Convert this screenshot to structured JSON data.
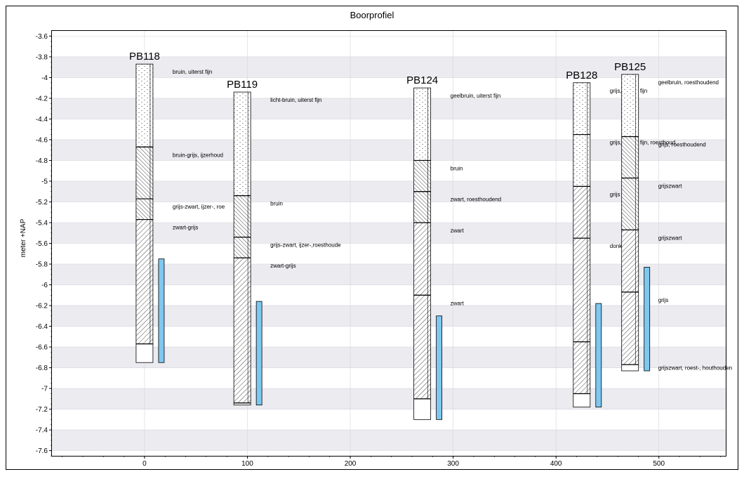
{
  "chart_data": {
    "type": "borehole-profile",
    "title": "Boorprofiel",
    "ylabel": "meter +NAP",
    "xlabel": "",
    "xlim": [
      -90,
      565
    ],
    "ylim": [
      -7.65,
      -3.55
    ],
    "xticks": [
      0,
      100,
      200,
      300,
      400,
      500
    ],
    "yticks": [
      -3.6,
      -3.8,
      -4,
      -4.2,
      -4.4,
      -4.6,
      -4.8,
      -5,
      -5.2,
      -5.4,
      -5.6,
      -5.8,
      -6,
      -6.2,
      -6.4,
      -6.6,
      -6.8,
      -7,
      -7.2,
      -7.4,
      -7.6
    ],
    "grid": "alternating horizontal bands",
    "colors": {
      "band": "#ebebf0",
      "filter": "#7ec8f0",
      "axis": "#000000"
    },
    "boreholes": [
      {
        "name": "PB118",
        "x": 0,
        "top": -3.87,
        "bottom": -6.75,
        "filter": {
          "top": -5.75,
          "bottom": -6.75
        },
        "layers": [
          {
            "top": -3.87,
            "bottom": -4.67,
            "type": "sand",
            "label": "bruin, uiterst fijn"
          },
          {
            "top": -4.67,
            "bottom": -5.17,
            "type": "clay-dense",
            "label": "bruin-grijs, ijzerhoud"
          },
          {
            "top": -5.17,
            "bottom": -5.37,
            "type": "clay-dense",
            "label": "grijs-zwart, ijzer-, roe"
          },
          {
            "top": -5.37,
            "bottom": -6.57,
            "type": "clay",
            "label": "zwart-grijs"
          },
          {
            "top": -6.57,
            "bottom": -6.75,
            "type": "empty",
            "label": ""
          }
        ]
      },
      {
        "name": "PB119",
        "x": 95,
        "top": -4.14,
        "bottom": -7.16,
        "filter": {
          "top": -6.16,
          "bottom": -7.16
        },
        "layers": [
          {
            "top": -4.14,
            "bottom": -5.14,
            "type": "sand",
            "label": "licht-bruin, uiterst fijn"
          },
          {
            "top": -5.14,
            "bottom": -5.54,
            "type": "clay-dense",
            "label": "bruin"
          },
          {
            "top": -5.54,
            "bottom": -5.74,
            "type": "clay-dense",
            "label": "grijs-zwart, ijzer-,roesthoude"
          },
          {
            "top": -5.74,
            "bottom": -7.14,
            "type": "clay",
            "label": "zwart-grijs"
          },
          {
            "top": -7.14,
            "bottom": -7.16,
            "type": "empty",
            "label": ""
          }
        ]
      },
      {
        "name": "PB124",
        "x": 270,
        "top": -4.1,
        "bottom": -7.3,
        "filter": {
          "top": -6.3,
          "bottom": -7.3
        },
        "layers": [
          {
            "top": -4.1,
            "bottom": -4.8,
            "type": "sand",
            "label": "geelbruin, uiterst fijn"
          },
          {
            "top": -4.8,
            "bottom": -5.1,
            "type": "clay-dense",
            "label": "bruin"
          },
          {
            "top": -5.1,
            "bottom": -5.4,
            "type": "clay-dense",
            "label": "zwart, roesthoudend"
          },
          {
            "top": -5.4,
            "bottom": -6.1,
            "type": "clay",
            "label": "zwart"
          },
          {
            "top": -6.1,
            "bottom": -7.1,
            "type": "clay",
            "label": "zwart"
          },
          {
            "top": -7.1,
            "bottom": -7.3,
            "type": "empty",
            "label": ""
          }
        ]
      },
      {
        "name": "PB128",
        "x": 425,
        "top": -4.05,
        "bottom": -7.18,
        "filter": {
          "top": -6.18,
          "bottom": -7.18
        },
        "layers": [
          {
            "top": -4.05,
            "bottom": -4.55,
            "type": "sand",
            "label": "grijs, uiterst fijn"
          },
          {
            "top": -4.55,
            "bottom": -5.05,
            "type": "sand",
            "label": "grijs, uiterst fijn, roesthoud"
          },
          {
            "top": -5.05,
            "bottom": -5.55,
            "type": "clay",
            "label": "grijs"
          },
          {
            "top": -5.55,
            "bottom": -6.55,
            "type": "clay",
            "label": "donkergrijs"
          },
          {
            "top": -6.55,
            "bottom": -7.05,
            "type": "clay",
            "label": ""
          },
          {
            "top": -7.05,
            "bottom": -7.18,
            "type": "empty",
            "label": ""
          }
        ]
      },
      {
        "name": "PB125",
        "x": 472,
        "top": -3.97,
        "bottom": -6.83,
        "filter": {
          "top": -5.83,
          "bottom": -6.83
        },
        "layers": [
          {
            "top": -3.97,
            "bottom": -4.57,
            "type": "sand",
            "label": "geelbruin, roesthoudend"
          },
          {
            "top": -4.57,
            "bottom": -4.97,
            "type": "clay-dense",
            "label": "grijs, roesthoudend"
          },
          {
            "top": -4.97,
            "bottom": -5.47,
            "type": "clay-dense",
            "label": "grijszwart"
          },
          {
            "top": -5.47,
            "bottom": -6.07,
            "type": "clay",
            "label": "grijszwart"
          },
          {
            "top": -6.07,
            "bottom": -6.77,
            "type": "clay",
            "label": "grijs"
          },
          {
            "top": -6.77,
            "bottom": -6.83,
            "type": "empty",
            "label": "grijszwart, roest-, houthouden"
          }
        ]
      }
    ]
  }
}
